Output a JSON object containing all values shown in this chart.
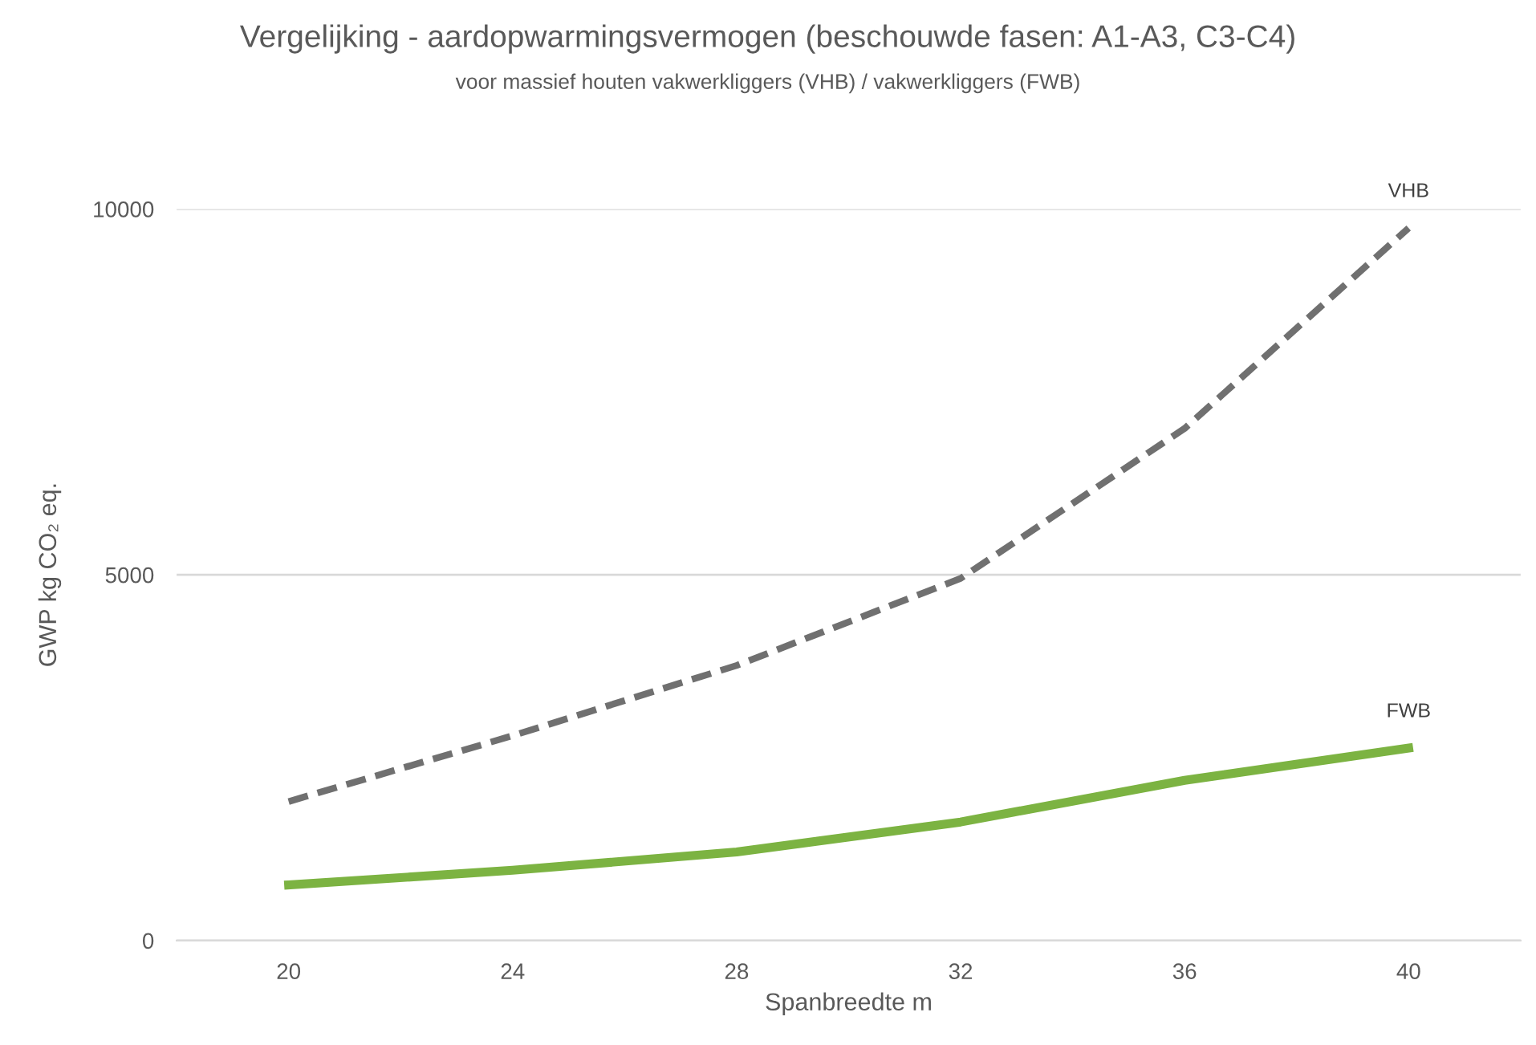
{
  "chart_data": {
    "type": "line",
    "title": "Vergelijking - aardopwarmingsvermogen (beschouwde fasen: A1-A3, C3-C4)",
    "subtitle": "voor massief houten vakwerkliggers (VHB) / vakwerkliggers (FWB)",
    "xlabel": "Spanbreedte m",
    "ylabel": "GWP kg CO₂ eq.",
    "categories": [
      "20",
      "24",
      "28",
      "32",
      "36",
      "40"
    ],
    "series": [
      {
        "name": "VHB",
        "color": "#707070",
        "line_style": "dashed",
        "values": [
          1900,
          2800,
          3760,
          4950,
          7000,
          9740
        ]
      },
      {
        "name": "FWB",
        "color": "#7cb342",
        "line_style": "solid",
        "values": [
          760,
          960,
          1210,
          1620,
          2190,
          2630
        ]
      }
    ],
    "ylim": [
      0,
      10000
    ],
    "yticks": [
      0,
      5000,
      10000
    ],
    "grid": "y",
    "legend": false,
    "marker": "none"
  }
}
